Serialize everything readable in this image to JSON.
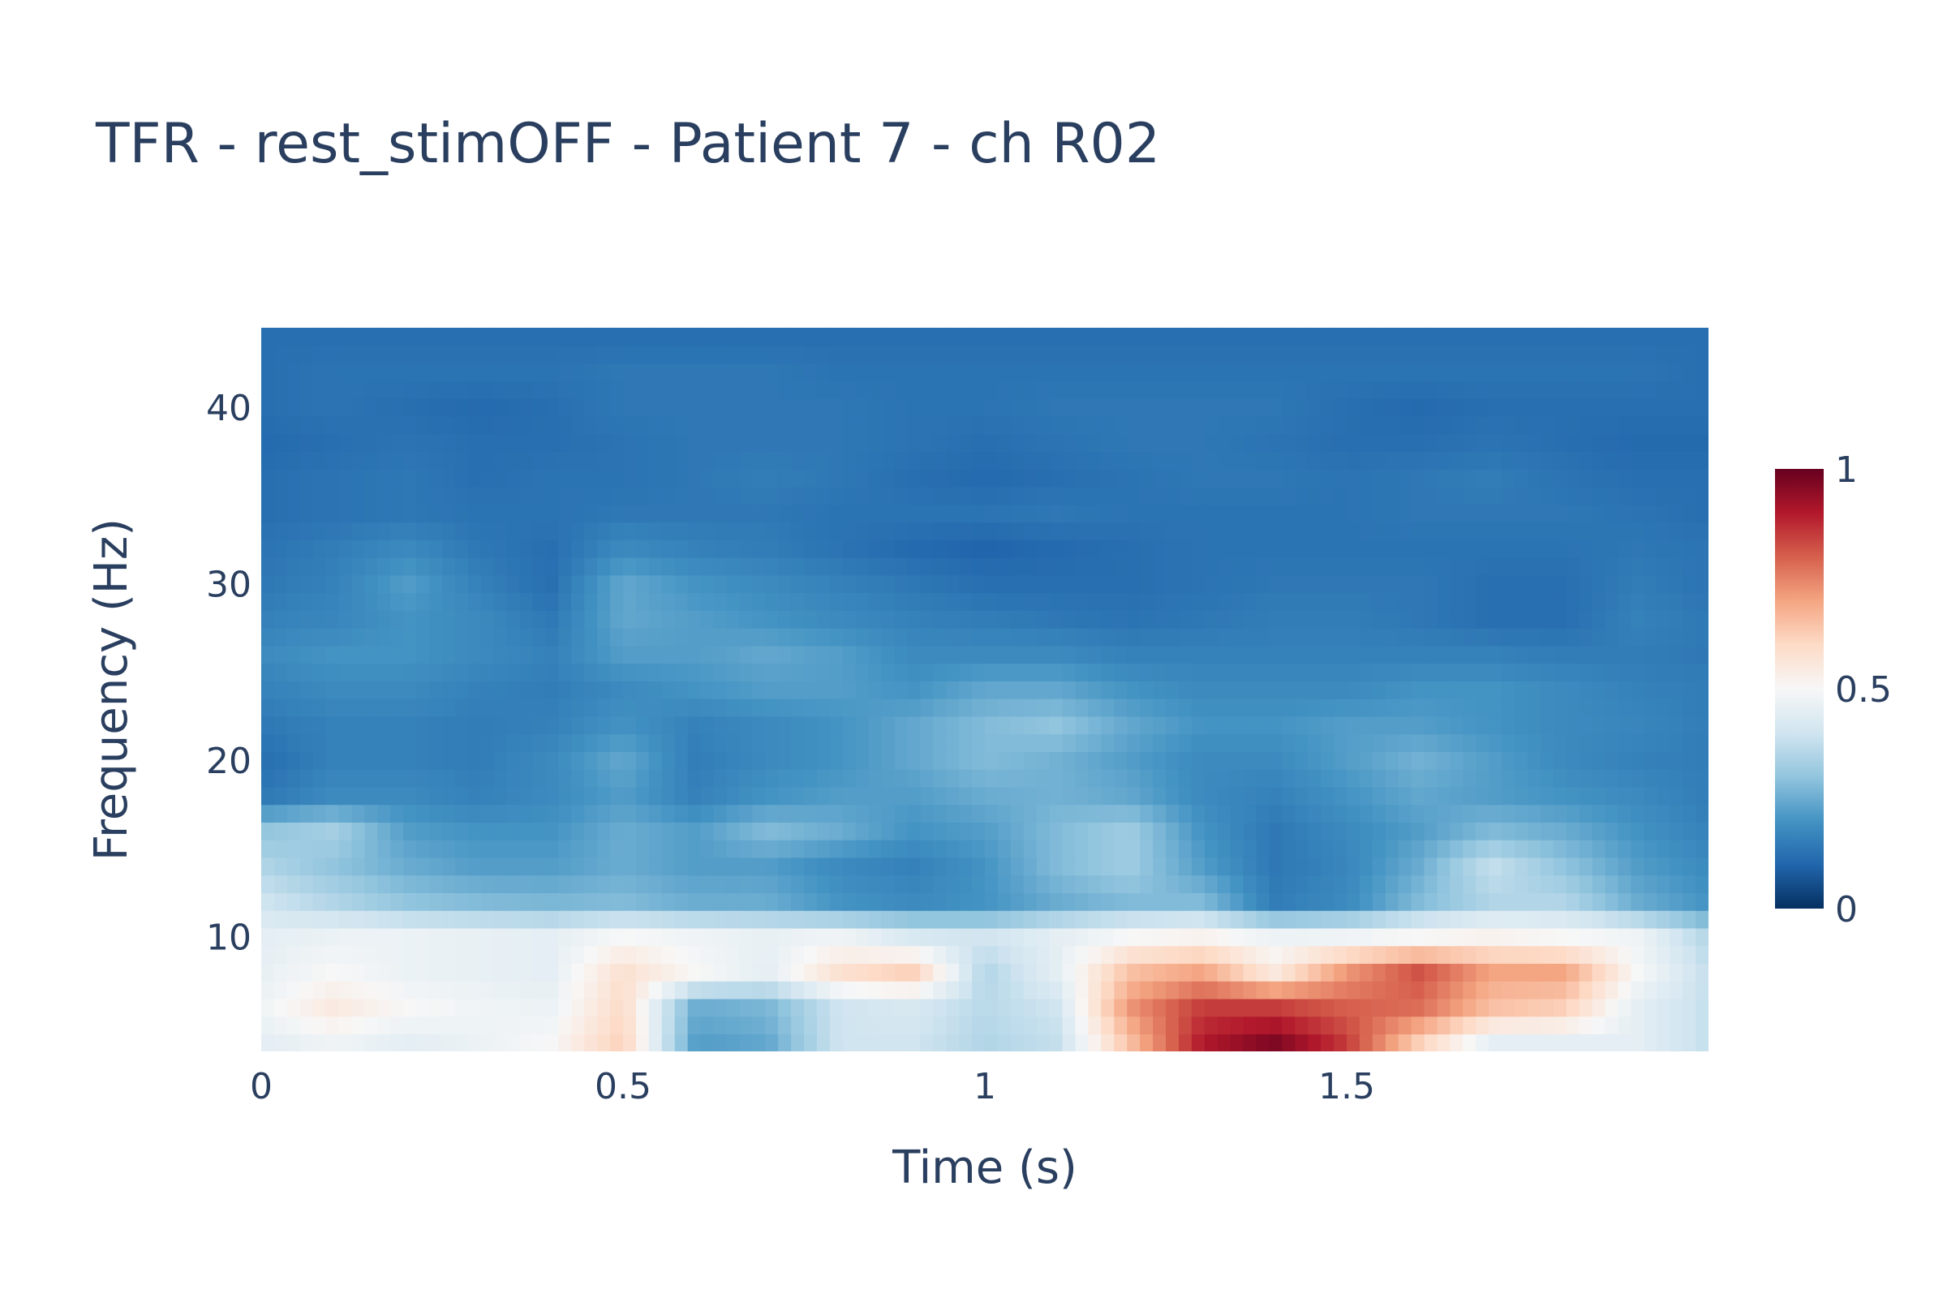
{
  "chart_data": {
    "type": "heatmap",
    "title": "TFR - rest_stimOFF - Patient 7 - ch R02",
    "xlabel": "Time (s)",
    "ylabel": "Frequency (Hz)",
    "xlim": [
      0,
      2
    ],
    "ylim": [
      3.5,
      44.5
    ],
    "x_ticks": [
      0,
      0.5,
      1,
      1.5
    ],
    "x_tick_labels": [
      "0",
      "0.5",
      "1",
      "1.5"
    ],
    "y_ticks": [
      10,
      20,
      30,
      40
    ],
    "y_tick_labels": [
      "10",
      "20",
      "30",
      "40"
    ],
    "colorscale": "RdBu_r",
    "colorscale_colors": [
      "#053061",
      "#2166ac",
      "#4393c3",
      "#92c5de",
      "#d1e5f0",
      "#f7f7f7",
      "#fddbc7",
      "#f4a582",
      "#d6604d",
      "#b2182b",
      "#67001f"
    ],
    "colorbar": {
      "range": [
        0,
        1
      ],
      "ticks": [
        0,
        0.5,
        1
      ],
      "tick_labels": [
        "0",
        "0.5",
        "1"
      ]
    },
    "x": [
      0,
      0.1,
      0.2,
      0.3,
      0.4,
      0.5,
      0.6,
      0.7,
      0.8,
      0.9,
      1.0,
      1.1,
      1.2,
      1.3,
      1.4,
      1.5,
      1.6,
      1.7,
      1.8,
      1.9,
      2.0
    ],
    "y": [
      4,
      6,
      8,
      10,
      12,
      14,
      16,
      18,
      20,
      22,
      24,
      26,
      28,
      30,
      32,
      34,
      36,
      38,
      40,
      42,
      44
    ],
    "z": [
      [
        0.45,
        0.48,
        0.45,
        0.47,
        0.5,
        0.62,
        0.22,
        0.24,
        0.4,
        0.4,
        0.35,
        0.38,
        0.65,
        0.9,
        0.97,
        0.85,
        0.62,
        0.45,
        0.45,
        0.45,
        0.38
      ],
      [
        0.48,
        0.55,
        0.5,
        0.48,
        0.47,
        0.6,
        0.25,
        0.27,
        0.4,
        0.42,
        0.36,
        0.4,
        0.72,
        0.85,
        0.85,
        0.8,
        0.78,
        0.65,
        0.62,
        0.45,
        0.38
      ],
      [
        0.46,
        0.5,
        0.47,
        0.46,
        0.45,
        0.58,
        0.5,
        0.45,
        0.58,
        0.62,
        0.35,
        0.45,
        0.65,
        0.7,
        0.55,
        0.72,
        0.82,
        0.7,
        0.7,
        0.5,
        0.38
      ],
      [
        0.45,
        0.47,
        0.47,
        0.46,
        0.45,
        0.5,
        0.48,
        0.46,
        0.48,
        0.42,
        0.4,
        0.45,
        0.5,
        0.52,
        0.47,
        0.48,
        0.5,
        0.52,
        0.5,
        0.48,
        0.35
      ],
      [
        0.4,
        0.35,
        0.3,
        0.28,
        0.27,
        0.28,
        0.25,
        0.25,
        0.2,
        0.18,
        0.2,
        0.25,
        0.28,
        0.28,
        0.15,
        0.18,
        0.28,
        0.35,
        0.35,
        0.25,
        0.2
      ],
      [
        0.35,
        0.3,
        0.25,
        0.22,
        0.22,
        0.25,
        0.22,
        0.22,
        0.18,
        0.16,
        0.2,
        0.28,
        0.32,
        0.22,
        0.14,
        0.17,
        0.25,
        0.38,
        0.3,
        0.22,
        0.18
      ],
      [
        0.3,
        0.33,
        0.22,
        0.2,
        0.2,
        0.25,
        0.22,
        0.28,
        0.25,
        0.2,
        0.22,
        0.28,
        0.32,
        0.2,
        0.14,
        0.18,
        0.22,
        0.28,
        0.25,
        0.2,
        0.16
      ],
      [
        0.14,
        0.18,
        0.18,
        0.16,
        0.18,
        0.22,
        0.16,
        0.2,
        0.22,
        0.22,
        0.25,
        0.26,
        0.24,
        0.18,
        0.16,
        0.2,
        0.24,
        0.22,
        0.2,
        0.18,
        0.15
      ],
      [
        0.12,
        0.16,
        0.16,
        0.15,
        0.18,
        0.24,
        0.15,
        0.18,
        0.2,
        0.24,
        0.28,
        0.26,
        0.22,
        0.18,
        0.18,
        0.22,
        0.26,
        0.22,
        0.18,
        0.16,
        0.15
      ],
      [
        0.14,
        0.16,
        0.16,
        0.15,
        0.16,
        0.2,
        0.16,
        0.18,
        0.2,
        0.24,
        0.28,
        0.3,
        0.24,
        0.2,
        0.2,
        0.22,
        0.22,
        0.2,
        0.18,
        0.17,
        0.15
      ],
      [
        0.16,
        0.18,
        0.18,
        0.16,
        0.15,
        0.18,
        0.2,
        0.22,
        0.22,
        0.2,
        0.24,
        0.24,
        0.2,
        0.18,
        0.18,
        0.18,
        0.2,
        0.2,
        0.18,
        0.16,
        0.15
      ],
      [
        0.18,
        0.2,
        0.2,
        0.18,
        0.16,
        0.22,
        0.22,
        0.24,
        0.22,
        0.18,
        0.18,
        0.18,
        0.16,
        0.16,
        0.16,
        0.16,
        0.16,
        0.16,
        0.15,
        0.15,
        0.14
      ],
      [
        0.16,
        0.17,
        0.2,
        0.18,
        0.14,
        0.24,
        0.22,
        0.2,
        0.18,
        0.16,
        0.15,
        0.14,
        0.13,
        0.14,
        0.15,
        0.15,
        0.14,
        0.12,
        0.12,
        0.16,
        0.14
      ],
      [
        0.14,
        0.16,
        0.22,
        0.16,
        0.12,
        0.24,
        0.2,
        0.18,
        0.16,
        0.14,
        0.12,
        0.12,
        0.12,
        0.13,
        0.14,
        0.14,
        0.14,
        0.12,
        0.12,
        0.15,
        0.13
      ],
      [
        0.13,
        0.15,
        0.18,
        0.14,
        0.12,
        0.18,
        0.16,
        0.15,
        0.13,
        0.11,
        0.1,
        0.11,
        0.12,
        0.13,
        0.13,
        0.13,
        0.13,
        0.13,
        0.13,
        0.14,
        0.13
      ],
      [
        0.12,
        0.13,
        0.14,
        0.13,
        0.13,
        0.14,
        0.14,
        0.14,
        0.13,
        0.13,
        0.13,
        0.14,
        0.13,
        0.13,
        0.13,
        0.13,
        0.14,
        0.14,
        0.14,
        0.13,
        0.12
      ],
      [
        0.12,
        0.13,
        0.14,
        0.12,
        0.13,
        0.13,
        0.14,
        0.15,
        0.14,
        0.12,
        0.11,
        0.12,
        0.13,
        0.14,
        0.14,
        0.13,
        0.14,
        0.15,
        0.13,
        0.12,
        0.12
      ],
      [
        0.11,
        0.12,
        0.13,
        0.12,
        0.12,
        0.13,
        0.14,
        0.14,
        0.14,
        0.13,
        0.12,
        0.13,
        0.14,
        0.14,
        0.13,
        0.12,
        0.12,
        0.13,
        0.12,
        0.11,
        0.11
      ],
      [
        0.12,
        0.13,
        0.12,
        0.11,
        0.12,
        0.14,
        0.14,
        0.14,
        0.14,
        0.13,
        0.13,
        0.14,
        0.14,
        0.14,
        0.14,
        0.12,
        0.11,
        0.12,
        0.12,
        0.12,
        0.12
      ],
      [
        0.12,
        0.13,
        0.13,
        0.13,
        0.13,
        0.14,
        0.14,
        0.14,
        0.13,
        0.13,
        0.13,
        0.13,
        0.13,
        0.13,
        0.13,
        0.13,
        0.13,
        0.13,
        0.13,
        0.13,
        0.12
      ],
      [
        0.12,
        0.12,
        0.12,
        0.12,
        0.12,
        0.12,
        0.12,
        0.12,
        0.12,
        0.12,
        0.12,
        0.12,
        0.12,
        0.12,
        0.12,
        0.12,
        0.12,
        0.12,
        0.12,
        0.12,
        0.12
      ]
    ]
  }
}
